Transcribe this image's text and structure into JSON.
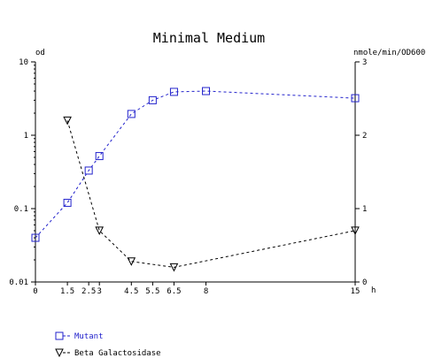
{
  "chart_data": {
    "type": "line",
    "title": "Minimal Medium",
    "xlabel": "h",
    "y_left_label": "od",
    "y_right_label": "nmole/min/OD600",
    "x_ticks": [
      0,
      1.5,
      2.5,
      3,
      4.5,
      5.5,
      6.5,
      8,
      15
    ],
    "x_tick_labels": [
      "0",
      "1.5",
      "2.5",
      "3",
      "4.5",
      "5.5",
      "6.5",
      "8",
      "15"
    ],
    "xlim": [
      0,
      15
    ],
    "y_left_scale": "log",
    "y_left_ticks": [
      0.01,
      0.1,
      1,
      10
    ],
    "y_left_tick_labels": [
      "0.01",
      "0.1",
      "1",
      "10"
    ],
    "ylim_left": [
      0.01,
      10
    ],
    "y_right_ticks": [
      0,
      1,
      2,
      3
    ],
    "y_right_tick_labels": [
      "0",
      "1",
      "2",
      "3"
    ],
    "ylim_right": [
      0,
      3
    ],
    "series": [
      {
        "name": "Mutant",
        "axis": "left",
        "marker": "square",
        "color": "#2222cc",
        "x": [
          0,
          1.5,
          2.5,
          3,
          4.5,
          5.5,
          6.5,
          8,
          15
        ],
        "y": [
          0.04,
          0.12,
          0.33,
          0.52,
          1.95,
          3.0,
          3.9,
          4.0,
          3.2
        ]
      },
      {
        "name": "Beta Galactosidase",
        "axis": "right",
        "marker": "triangle-down",
        "color": "#000000",
        "x": [
          1.5,
          3,
          4.5,
          6.5,
          15
        ],
        "y": [
          2.2,
          0.7,
          0.28,
          0.2,
          0.7
        ]
      }
    ],
    "legend_position": "bottom-left",
    "grid": false
  }
}
